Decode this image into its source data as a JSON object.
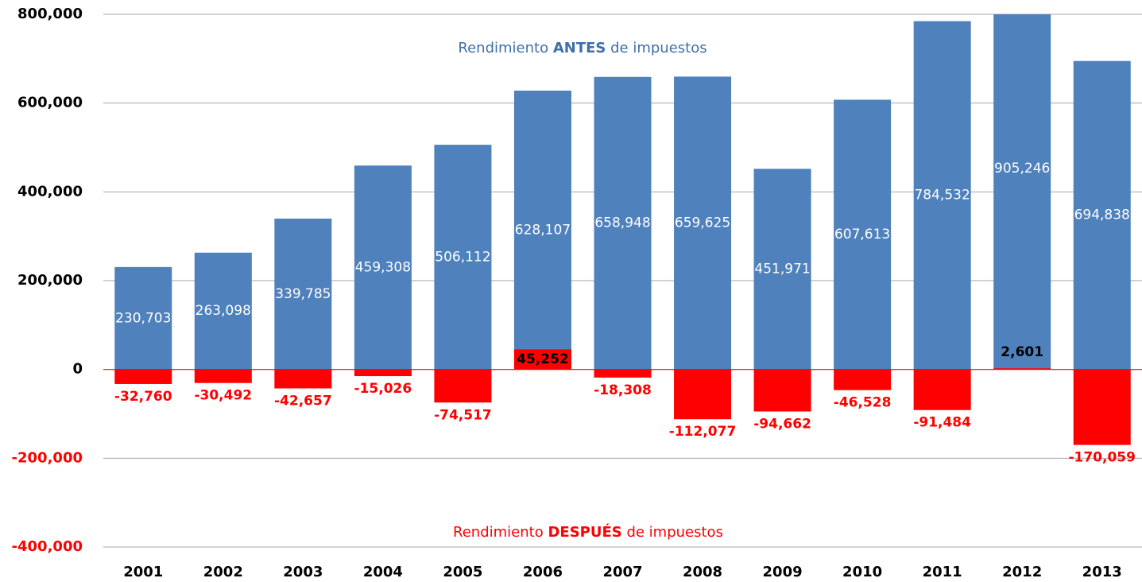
{
  "chart_data": {
    "type": "bar",
    "categories": [
      "2001",
      "2002",
      "2003",
      "2004",
      "2005",
      "2006",
      "2007",
      "2008",
      "2009",
      "2010",
      "2011",
      "2012",
      "2013"
    ],
    "series": [
      {
        "name": "Rendimiento ANTES de impuestos",
        "color": "#4f81bd",
        "values": [
          230703,
          263098,
          339785,
          459308,
          506112,
          628107,
          658948,
          659625,
          451971,
          607613,
          784532,
          905246,
          694838
        ],
        "value_labels": [
          "230,703",
          "263,098",
          "339,785",
          "459,308",
          "506,112",
          "628,107",
          "658,948",
          "659,625",
          "451,971",
          "607,613",
          "784,532",
          "905,246",
          "694,838"
        ]
      },
      {
        "name": "Rendimiento DESPUÉS de impuestos",
        "color": "#ff0000",
        "values": [
          -32760,
          -30492,
          -42657,
          -15026,
          -74517,
          45252,
          -18308,
          -112077,
          -94662,
          -46528,
          -91484,
          2601,
          -170059
        ],
        "value_labels": [
          "-32,760",
          "-30,492",
          "-42,657",
          "-15,026",
          "-74,517",
          "45,252",
          "-18,308",
          "-112,077",
          "-94,662",
          "-46,528",
          "-91,484",
          "2,601",
          "-170,059"
        ]
      }
    ],
    "ylim": [
      -400000,
      800000
    ],
    "yticks": [
      {
        "value": -400000,
        "label": "-400,000"
      },
      {
        "value": -200000,
        "label": "-200,000"
      },
      0,
      {
        "value": 200000,
        "label": "200,000"
      },
      {
        "value": 400000,
        "label": "400,000"
      },
      {
        "value": 600000,
        "label": "600,000"
      },
      {
        "value": 800000,
        "label": "800,000"
      }
    ],
    "grid": true
  }
}
